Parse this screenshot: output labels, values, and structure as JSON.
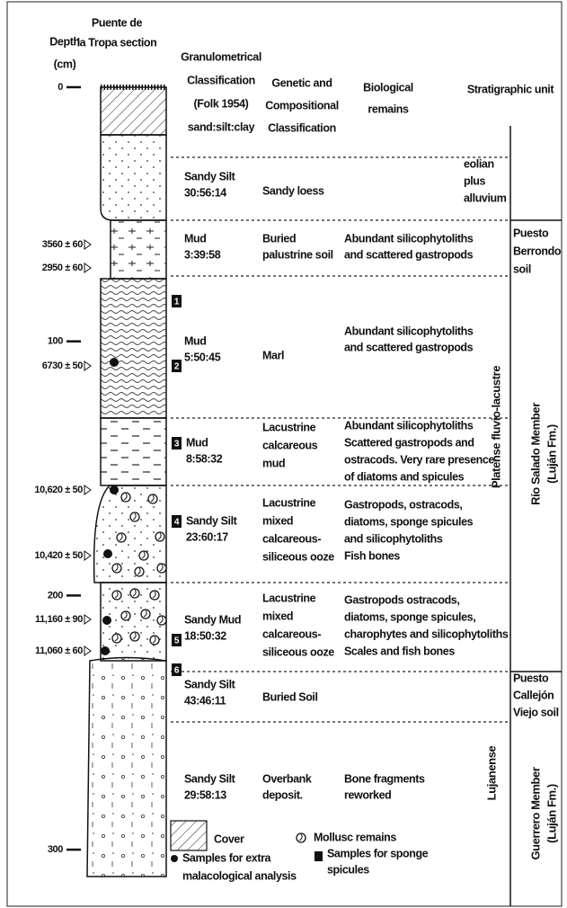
{
  "header": {
    "depth": [
      "Depth",
      "(cm)"
    ],
    "section_title": [
      "Puente de",
      "la Tropa section"
    ],
    "granulometric": [
      "Granulometrical",
      "Classification",
      "(Folk 1954)",
      "sand:silt:clay"
    ],
    "genetic": [
      "Genetic and",
      "Compositional",
      "Classification"
    ],
    "biological": [
      "Biological",
      "remains"
    ],
    "stratigraphic": "Stratigraphic unit"
  },
  "depth_ticks": [
    0,
    100,
    200,
    300
  ],
  "dates": [
    "3560 ± 60",
    "2950 ± 60",
    "6730 ± 50",
    "10,620 ± 50",
    "10,420 ± 50",
    "11,160 ± 90",
    "11,060 ± 60"
  ],
  "samples": [
    "1",
    "2",
    "3",
    "4",
    "5",
    "6"
  ],
  "layers": [
    {
      "granulometric": [
        "Sandy Silt",
        "30:56:14"
      ],
      "genetic": [
        "Sandy loess"
      ],
      "biological": []
    },
    {
      "granulometric": [
        "Mud",
        "3:39:58"
      ],
      "genetic": [
        "Buried",
        "palustrine soil"
      ],
      "biological": [
        "Abundant silicophytoliths",
        "and scattered gastropods"
      ]
    },
    {
      "granulometric": [
        "Mud",
        "5:50:45"
      ],
      "genetic": [
        "Marl"
      ],
      "biological": [
        "Abundant silicophytoliths",
        "and scattered gastropods"
      ]
    },
    {
      "granulometric": [
        "Mud",
        "8:58:32"
      ],
      "genetic": [
        "Lacustrine",
        "calcareous",
        "mud"
      ],
      "biological": [
        "Abundant silicophytoliths",
        "Scattered gastropods and",
        "ostracods. Very rare presence",
        "of diatoms and spicules"
      ]
    },
    {
      "granulometric": [
        "Sandy Silt",
        "23:60:17"
      ],
      "genetic": [
        "Lacustrine",
        "mixed",
        "calcareous-",
        "siliceous ooze"
      ],
      "biological": [
        "Gastropods, ostracods,",
        "diatoms, sponge spicules",
        "and silicophytoliths",
        "Fish bones"
      ]
    },
    {
      "granulometric": [
        "Sandy Mud",
        "18:50:32"
      ],
      "genetic": [
        "Lacustrine",
        "mixed",
        "calcareous-",
        "siliceous ooze"
      ],
      "biological": [
        "Gastropods ostracods,",
        "diatoms, sponge spicules,",
        "charophytes and silicophytoliths",
        "Scales and fish bones"
      ]
    },
    {
      "granulometric": [
        "Sandy Silt",
        "43:46:11"
      ],
      "genetic": [
        "Buried Soil"
      ],
      "biological": []
    },
    {
      "granulometric": [
        "Sandy Silt",
        "29:58:13"
      ],
      "genetic": [
        "Overbank",
        "deposit."
      ],
      "biological": [
        "Bone fragments",
        "reworked"
      ]
    }
  ],
  "units": {
    "eolian": [
      "eolian",
      "plus",
      "alluvium"
    ],
    "berrondo": [
      "Puesto",
      "Berrondo",
      "soil"
    ],
    "callejon": [
      "Puesto",
      "Callejón",
      "Viejo soil"
    ],
    "platense": "Platense fluvio-lacustre",
    "lujanense": "Lujanense",
    "rio_salado": [
      "Río Salado Member",
      "(Luján Fm.)"
    ],
    "guerrero": [
      "Guerrero Member",
      "(Luján Fm.)"
    ]
  },
  "legend": {
    "cover": "Cover",
    "mollusc": "Mollusc remains",
    "malacological": [
      "Samples for extra",
      "malacological analysis"
    ],
    "sponge": [
      "Samples for sponge",
      "spicules"
    ]
  }
}
